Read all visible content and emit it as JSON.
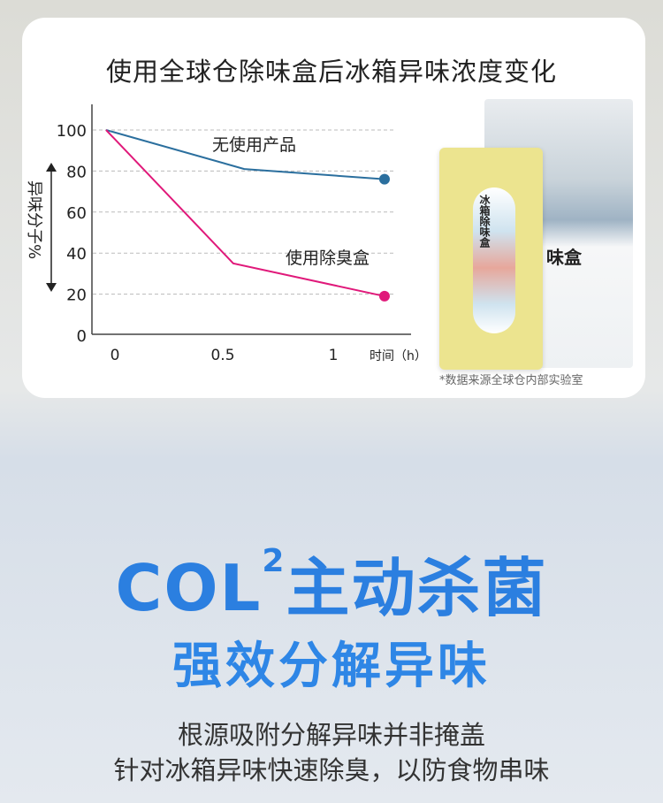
{
  "chart_data": {
    "type": "line",
    "title": "使用全球仓除味盒后冰箱异味浓度变化",
    "ylabel": "异味分子%",
    "xlabel": "时间（h）",
    "ylim": [
      0,
      100
    ],
    "yticks": [
      "0",
      "20",
      "40",
      "60",
      "80",
      "100"
    ],
    "xticks": [
      "0",
      "0.5",
      "1"
    ],
    "grid": true,
    "series": [
      {
        "name": "无使用产品",
        "color": "#2b6f9e",
        "x": [
          0,
          0.63,
          1.27
        ],
        "y": [
          100,
          81,
          76
        ]
      },
      {
        "name": "使用除臭盒",
        "color": "#e0197a",
        "x": [
          0,
          0.58,
          1.27
        ],
        "y": [
          100,
          35,
          19
        ]
      }
    ]
  },
  "product": {
    "box_label": "冰箱除味盒",
    "package_label": "味盒"
  },
  "note": "*数据来源全球仓内部实验室",
  "headline": {
    "main": "COL",
    "sup": "2",
    "rest": "主动杀菌"
  },
  "subheadline": "强效分解异味",
  "lines": [
    "根源吸附分解异味并非掩盖",
    "针对冰箱异味快速除臭，以防食物串味"
  ]
}
